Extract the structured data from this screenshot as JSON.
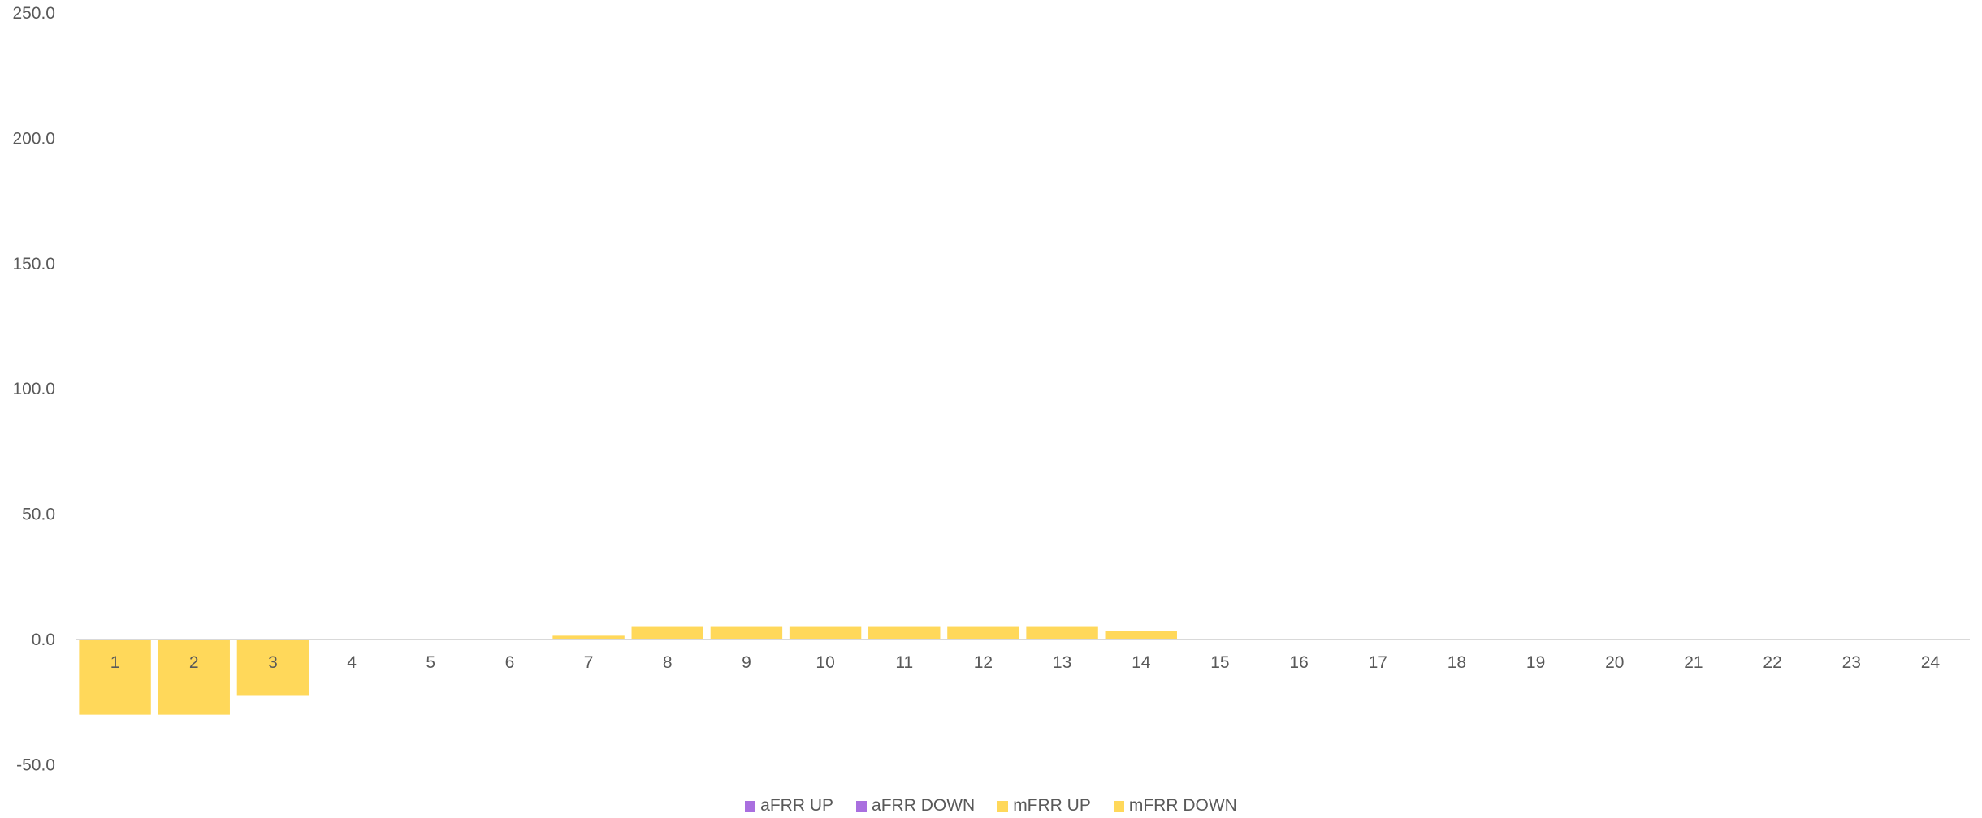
{
  "chart_data": {
    "type": "bar",
    "stacked": true,
    "categories": [
      "1",
      "2",
      "3",
      "4",
      "5",
      "6",
      "7",
      "8",
      "9",
      "10",
      "11",
      "12",
      "13",
      "14",
      "15",
      "16",
      "17",
      "18",
      "19",
      "20",
      "21",
      "22",
      "23",
      "24"
    ],
    "series": [
      {
        "name": "aFRR UP",
        "color": "#a96fdf",
        "values": [
          0,
          0,
          0,
          0,
          0,
          0,
          0,
          0,
          0,
          0,
          0,
          0,
          0,
          0,
          0,
          0,
          0,
          0,
          0,
          0,
          0,
          0,
          0,
          0
        ]
      },
      {
        "name": "aFRR DOWN",
        "color": "#a96fdf",
        "values": [
          0,
          0,
          0,
          0,
          0,
          0,
          0,
          0,
          0,
          0,
          0,
          0,
          0,
          0,
          0,
          0,
          0,
          0,
          0,
          0,
          0,
          0,
          0,
          0
        ]
      },
      {
        "name": "mFRR UP",
        "color": "#ffd85a",
        "values": [
          0,
          0,
          0,
          0,
          0,
          0,
          1.5,
          5,
          5,
          5,
          5,
          5,
          5,
          3.5,
          0,
          0,
          0,
          0,
          0,
          0,
          0,
          0,
          0,
          0
        ]
      },
      {
        "name": "mFRR DOWN",
        "color": "#ffd85a",
        "values": [
          -30,
          -30,
          -22.5,
          0,
          0,
          0,
          0,
          0,
          0,
          0,
          0,
          0,
          0,
          0,
          0,
          0,
          0,
          0,
          0,
          0,
          0,
          0,
          0,
          0
        ]
      }
    ],
    "yticks": [
      "250.0",
      "200.0",
      "150.0",
      "100.0",
      "50.0",
      "0.0",
      "-50.0"
    ],
    "ylim": [
      -50,
      250
    ],
    "grid": false,
    "legend_position": "bottom"
  }
}
